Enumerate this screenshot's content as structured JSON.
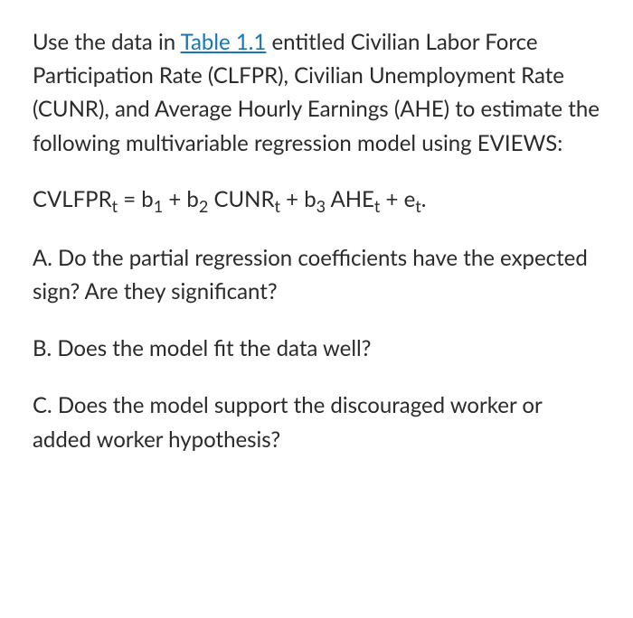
{
  "intro": {
    "pre_link": "Use the data in ",
    "link_text": "Table 1.1",
    "post_link": " entitled Civilian Labor Force Participation Rate (CLFPR), Civilian Unemployment Rate (CUNR), and Average Hourly Earnings (AHE) to estimate the following multivariable regression model using EVIEWS:"
  },
  "equation": {
    "lhs": "CVLFPR",
    "lhs_sub": "t",
    "eq": " = ",
    "b1": "b",
    "b1_sub": "1",
    "plus1": " + ",
    "b2": "b",
    "b2_sub": "2",
    "cunr": " CUNR",
    "cunr_sub": "t",
    "plus2": " + ",
    "b3": "b",
    "b3_sub": "3",
    "ahe": " AHE",
    "ahe_sub": "t",
    "plus3": " + ",
    "e": "e",
    "e_sub": "t",
    "period": "."
  },
  "questions": {
    "a": "A. Do the partial regression coefficients have the expected sign?  Are they significant?",
    "b": "B.  Does the model fit the data well?",
    "c": "C.  Does the model support the discouraged worker or added worker hypothesis?"
  },
  "colors": {
    "text": "#2a2a2a",
    "link": "#1577b6",
    "background": "#ffffff"
  },
  "fontsize": 24
}
